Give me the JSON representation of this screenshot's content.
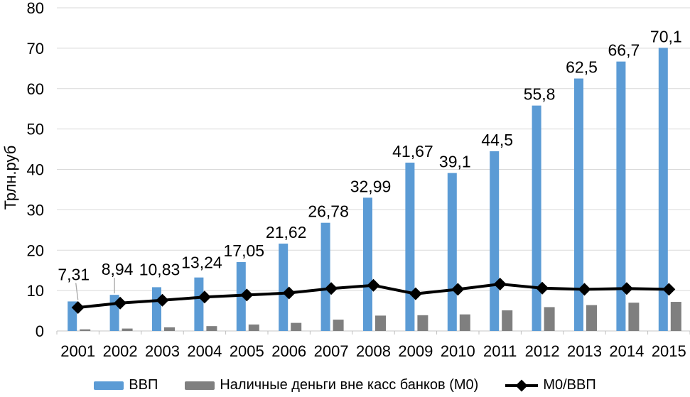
{
  "chart_data": {
    "type": "bar",
    "combo": "grouped bars with line overlay",
    "title": "",
    "ylabel": "Трлн.руб",
    "ylim": [
      0,
      80
    ],
    "yticks": [
      0,
      10,
      20,
      30,
      40,
      50,
      60,
      70,
      80
    ],
    "grid": true,
    "legend_position": "bottom",
    "categories": [
      "2001",
      "2002",
      "2003",
      "2004",
      "2005",
      "2006",
      "2007",
      "2008",
      "2009",
      "2010",
      "2011",
      "2012",
      "2013",
      "2014",
      "2015"
    ],
    "series": [
      {
        "name": "ВВП",
        "type": "bar",
        "color": "#5B9BD5",
        "values": [
          7.31,
          8.94,
          10.83,
          13.24,
          17.05,
          21.62,
          26.78,
          32.99,
          41.67,
          39.1,
          44.5,
          55.8,
          62.5,
          66.7,
          70.1
        ],
        "data_labels": [
          "7,31",
          "8,94",
          "10,83",
          "13,24",
          "17,05",
          "21,62",
          "26,78",
          "32,99",
          "41,67",
          "39,1",
          "44,5",
          "55,8",
          "62,5",
          "66,7",
          "70,1"
        ]
      },
      {
        "name": "Наличные деньги вне касс банков (М0)",
        "type": "bar",
        "color": "#7F7F7F",
        "values": [
          0.4,
          0.6,
          0.9,
          1.2,
          1.6,
          2.0,
          2.8,
          3.8,
          3.9,
          4.1,
          5.1,
          5.9,
          6.4,
          7.0,
          7.2
        ]
      },
      {
        "name": "М0/ВВП",
        "type": "line",
        "marker": "diamond",
        "color": "#000000",
        "values": [
          5.8,
          6.9,
          7.6,
          8.4,
          8.9,
          9.4,
          10.5,
          11.3,
          9.2,
          10.3,
          11.6,
          10.6,
          10.3,
          10.5,
          10.3
        ]
      }
    ],
    "colors": {
      "gridline": "#D9D9D9",
      "baseline": "#C6C6C6",
      "tick_mark": "#BFBFBF",
      "leader_line": "#A6A6A6",
      "axis_text": "#000000"
    }
  }
}
